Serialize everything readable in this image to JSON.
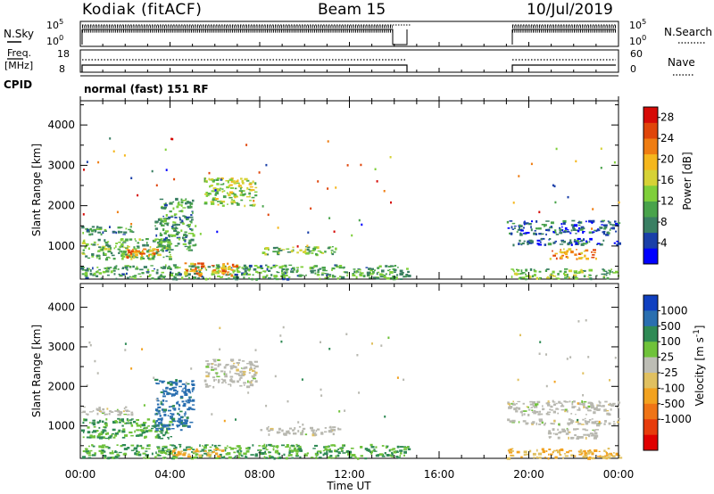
{
  "header": {
    "station": "Kodiak (fitACF)",
    "beam": "Beam 15",
    "date": "10/Jul/2019"
  },
  "panels": {
    "nsky": {
      "label": "N.Sky",
      "tick_top": "10^5",
      "tick_bottom": "10^0",
      "right_label": "N.Search",
      "right_tick_top": "10^5",
      "right_tick_bottom": "10^0"
    },
    "freq": {
      "label_line1": "Freq.",
      "label_line2": "[MHz]",
      "tick_top": "18",
      "tick_bottom": "8",
      "right_label": "Nave",
      "right_tick_top": "60",
      "right_tick_bottom": "0"
    },
    "cpid": {
      "label": "CPID",
      "value": "normal (fast) 151 RF"
    }
  },
  "colors": {
    "power": [
      "#0000ff",
      "#1a3fa8",
      "#3a7f63",
      "#49a34b",
      "#7fcf3a",
      "#d6d236",
      "#f5b71d",
      "#ef7d12",
      "#e0450a",
      "#d60a06"
    ],
    "velocity": [
      "#1040c0",
      "#2a6fb0",
      "#2f8a55",
      "#6fc23a",
      "#bdbdb5",
      "#e0c060",
      "#f2a220",
      "#ef7416",
      "#e73c0c",
      "#e00000"
    ],
    "ground_scatter": "#b8b8b0"
  },
  "chart_data": [
    {
      "type": "heatmap",
      "title": "",
      "xlabel": "",
      "ylabel": "Slant Range [km]",
      "x_ticks": [
        "00:00",
        "04:00",
        "08:00",
        "12:00",
        "16:00",
        "20:00",
        "00:00"
      ],
      "xlim_hours": [
        0,
        24
      ],
      "y_ticks": [
        "1000",
        "2000",
        "3000",
        "4000"
      ],
      "ylim": [
        180,
        4600
      ],
      "colorbar": {
        "label": "Power [dB]",
        "ticks": [
          "4",
          "8",
          "12",
          "16",
          "20",
          "24",
          "28"
        ],
        "range": [
          0,
          30
        ]
      },
      "regions": [
        {
          "t0": 0.0,
          "t1": 2.3,
          "r0": 1300,
          "r1": 1500,
          "value": 8
        },
        {
          "t0": 0.0,
          "t1": 4.0,
          "r0": 700,
          "r1": 1200,
          "value": 12
        },
        {
          "t0": 2.0,
          "t1": 3.5,
          "r0": 750,
          "r1": 950,
          "value": 22
        },
        {
          "t0": 3.3,
          "t1": 5.0,
          "r0": 900,
          "r1": 2200,
          "value": 10
        },
        {
          "t0": 5.5,
          "t1": 7.8,
          "r0": 2000,
          "r1": 2700,
          "value": 14
        },
        {
          "t0": 8.0,
          "t1": 11.5,
          "r0": 800,
          "r1": 1000,
          "value": 12
        },
        {
          "t0": 0.0,
          "t1": 14.6,
          "r0": 200,
          "r1": 550,
          "value": 10
        },
        {
          "t0": 4.5,
          "t1": 7.0,
          "r0": 300,
          "r1": 600,
          "value": 22
        },
        {
          "t0": 19.0,
          "t1": 24.0,
          "r0": 1300,
          "r1": 1650,
          "value": 6
        },
        {
          "t0": 19.0,
          "t1": 24.0,
          "r0": 1050,
          "r1": 1200,
          "value": 6
        },
        {
          "t0": 20.8,
          "t1": 23.0,
          "r0": 700,
          "r1": 950,
          "value": 22
        },
        {
          "t0": 19.0,
          "t1": 24.0,
          "r0": 200,
          "r1": 450,
          "value": 12
        }
      ]
    },
    {
      "type": "heatmap",
      "title": "",
      "xlabel": "Time UT",
      "ylabel": "Slant Range [km]",
      "x_ticks": [
        "00:00",
        "04:00",
        "08:00",
        "12:00",
        "16:00",
        "20:00",
        "00:00"
      ],
      "xlim_hours": [
        0,
        24
      ],
      "y_ticks": [
        "1000",
        "2000",
        "3000",
        "4000"
      ],
      "ylim": [
        180,
        4600
      ],
      "colorbar": {
        "label": "Velocity [m s^-1]",
        "ticks": [
          "1000",
          "500",
          "100",
          "25",
          "-25",
          "-100",
          "-500",
          "-1000"
        ]
      },
      "regions": [
        {
          "t0": 0.0,
          "t1": 2.3,
          "r0": 1300,
          "r1": 1500,
          "value": "gs"
        },
        {
          "t0": 0.0,
          "t1": 4.0,
          "r0": 700,
          "r1": 1200,
          "value": 100
        },
        {
          "t0": 3.3,
          "t1": 5.0,
          "r0": 900,
          "r1": 2200,
          "value": 700
        },
        {
          "t0": 5.5,
          "t1": 7.8,
          "r0": 2000,
          "r1": 2700,
          "value": "gs"
        },
        {
          "t0": 8.0,
          "t1": 11.5,
          "r0": 800,
          "r1": 1000,
          "value": "gs"
        },
        {
          "t0": 0.0,
          "t1": 14.6,
          "r0": 200,
          "r1": 550,
          "value": 100
        },
        {
          "t0": 4.0,
          "t1": 6.5,
          "r0": 250,
          "r1": 450,
          "value": -100
        },
        {
          "t0": 19.0,
          "t1": 24.0,
          "r0": 1300,
          "r1": 1650,
          "value": "gs"
        },
        {
          "t0": 19.0,
          "t1": 24.0,
          "r0": 1050,
          "r1": 1200,
          "value": "gs"
        },
        {
          "t0": 20.8,
          "t1": 23.0,
          "r0": 700,
          "r1": 950,
          "value": "gs"
        },
        {
          "t0": 19.0,
          "t1": 24.0,
          "r0": 200,
          "r1": 450,
          "value": -100
        }
      ]
    }
  ]
}
